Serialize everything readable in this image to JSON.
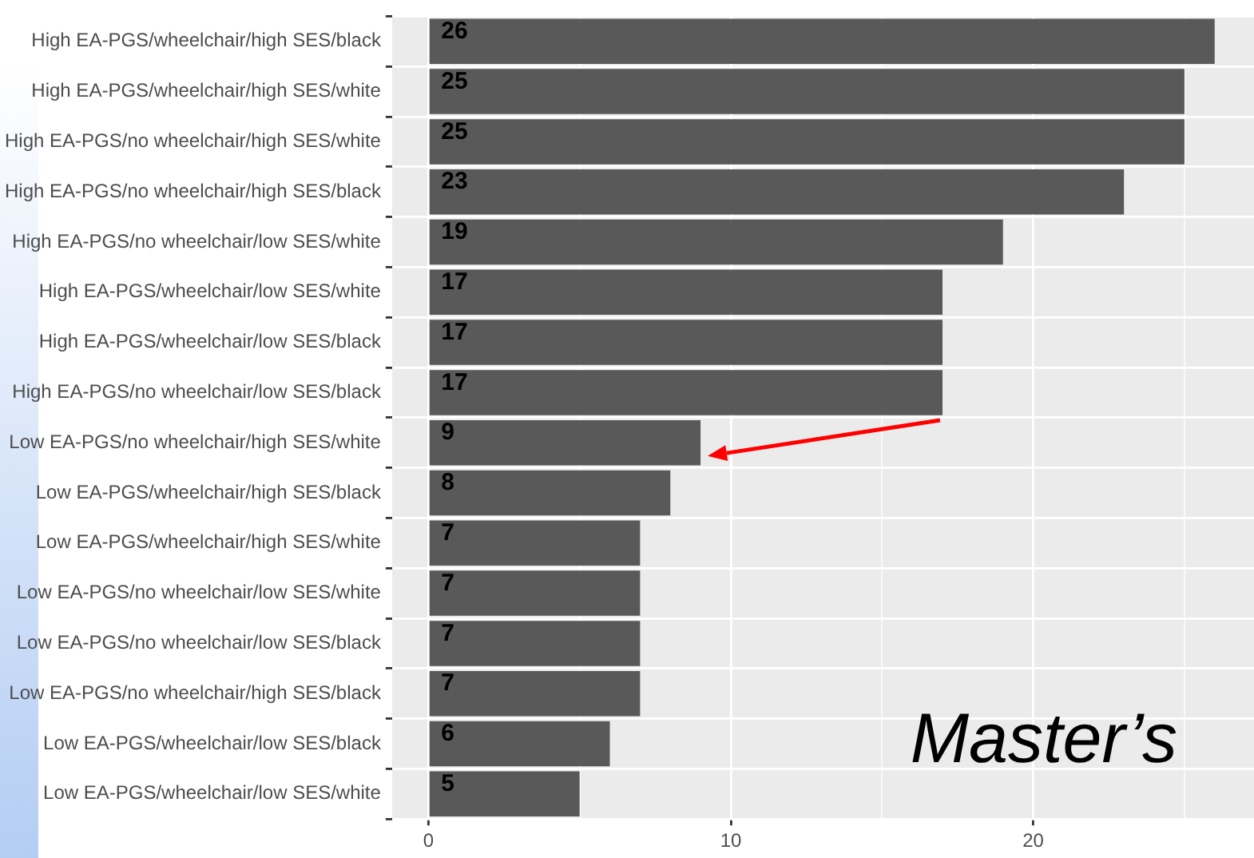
{
  "chart_data": {
    "type": "bar",
    "orientation": "horizontal",
    "categories": [
      "High EA-PGS/wheelchair/high SES/black",
      "High EA-PGS/wheelchair/high SES/white",
      "High EA-PGS/no wheelchair/high SES/white",
      "High EA-PGS/no wheelchair/high SES/black",
      "High EA-PGS/no wheelchair/low SES/white",
      "High EA-PGS/wheelchair/low SES/white",
      "High EA-PGS/wheelchair/low SES/black",
      "High EA-PGS/no wheelchair/low SES/black",
      "Low EA-PGS/no wheelchair/high SES/white",
      "Low EA-PGS/wheelchair/high SES/black",
      "Low EA-PGS/wheelchair/high SES/white",
      "Low EA-PGS/no wheelchair/low SES/white",
      "Low EA-PGS/no wheelchair/low SES/black",
      "Low EA-PGS/no wheelchair/high SES/black",
      "Low EA-PGS/wheelchair/low SES/black",
      "Low EA-PGS/wheelchair/low SES/white"
    ],
    "values": [
      26,
      25,
      25,
      23,
      19,
      17,
      17,
      17,
      9,
      8,
      7,
      7,
      7,
      7,
      6,
      5
    ],
    "color": "#595959",
    "xlim": [
      -1.2,
      27.3
    ],
    "xticks": [
      0,
      {
        "value": 5,
        "label": null
      },
      10,
      {
        "value": 15,
        "label": null
      },
      20,
      {
        "value": 25,
        "label": null
      }
    ],
    "grid": true,
    "data_labels": true,
    "annotations": [
      "Master’s"
    ]
  }
}
